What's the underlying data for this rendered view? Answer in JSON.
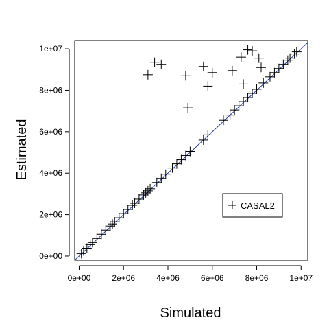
{
  "chart_data": {
    "type": "scatter",
    "xlabel": "Simulated",
    "ylabel": "Estimated",
    "xlim": [
      -200000,
      10300000
    ],
    "ylim": [
      -200000,
      10400000
    ],
    "x_ticks": [
      {
        "value": 0,
        "label": "0e+00"
      },
      {
        "value": 2000000,
        "label": "2e+06"
      },
      {
        "value": 4000000,
        "label": "4e+06"
      },
      {
        "value": 6000000,
        "label": "6e+06"
      },
      {
        "value": 8000000,
        "label": "8e+06"
      },
      {
        "value": 10000000,
        "label": "1e+07"
      }
    ],
    "y_ticks": [
      {
        "value": 0,
        "label": "0e+00"
      },
      {
        "value": 2000000,
        "label": "2e+06"
      },
      {
        "value": 4000000,
        "label": "4e+06"
      },
      {
        "value": 6000000,
        "label": "6e+06"
      },
      {
        "value": 8000000,
        "label": "8e+06"
      },
      {
        "value": 10000000,
        "label": "1e+07"
      }
    ],
    "grid": false,
    "legend": {
      "position": "bottom-right",
      "entries": [
        {
          "label": "CASAL2",
          "marker": "plus"
        }
      ]
    },
    "reference_line": {
      "type": "y=x",
      "color": "#1f3aa6"
    },
    "series": [
      {
        "name": "CASAL2",
        "marker": "plus",
        "color": "#000000",
        "x": [
          30000.0,
          100000.0,
          200000.0,
          350000.0,
          500000.0,
          600000.0,
          800000.0,
          1000000.0,
          1200000.0,
          1400000.0,
          1500000.0,
          1600000.0,
          1800000.0,
          2000000.0,
          2200000.0,
          2400000.0,
          2500000.0,
          2700000.0,
          2900000.0,
          3000000.0,
          3100000.0,
          3200000.0,
          3500000.0,
          3700000.0,
          3900000.0,
          4200000.0,
          4400000.0,
          4600000.0,
          4800000.0,
          5000000.0,
          5600000.0,
          5800000.0,
          6500000.0,
          6800000.0,
          7000000.0,
          7200000.0,
          7400000.0,
          7600000.0,
          7800000.0,
          8000000.0,
          8300000.0,
          8600000.0,
          8800000.0,
          9000000.0,
          9200000.0,
          9400000.0,
          9500000.0,
          9700000.0,
          9800000.0,
          3100000.0,
          3400000.0,
          3700000.0,
          4800000.0,
          5600000.0,
          6000000.0,
          6900000.0,
          7300000.0,
          7600000.0,
          7800000.0,
          8100000.0,
          4900000.0,
          5800000.0,
          7400000.0,
          8200000.0
        ],
        "y": [
          50000.0,
          120000.0,
          250000.0,
          380000.0,
          550000.0,
          650000.0,
          850000.0,
          1050000.0,
          1250000.0,
          1450000.0,
          1550000.0,
          1650000.0,
          1850000.0,
          2050000.0,
          2250000.0,
          2450000.0,
          2550000.0,
          2750000.0,
          2950000.0,
          3050000.0,
          3150000.0,
          3250000.0,
          3550000.0,
          3750000.0,
          3950000.0,
          4250000.0,
          4450000.0,
          4650000.0,
          4850000.0,
          5050000.0,
          5600000.0,
          5850000.0,
          6550000.0,
          6800000.0,
          7050000.0,
          7250000.0,
          7450000.0,
          7650000.0,
          7850000.0,
          8050000.0,
          8350000.0,
          8650000.0,
          8850000.0,
          9050000.0,
          9250000.0,
          9450000.0,
          9550000.0,
          9750000.0,
          9850000.0,
          8750000.0,
          9350000.0,
          9250000.0,
          8700000.0,
          9150000.0,
          8850000.0,
          8950000.0,
          9600000.0,
          9950000.0,
          9900000.0,
          9550000.0,
          7150000.0,
          8200000.0,
          8300000.0,
          9100000.0
        ]
      }
    ]
  }
}
